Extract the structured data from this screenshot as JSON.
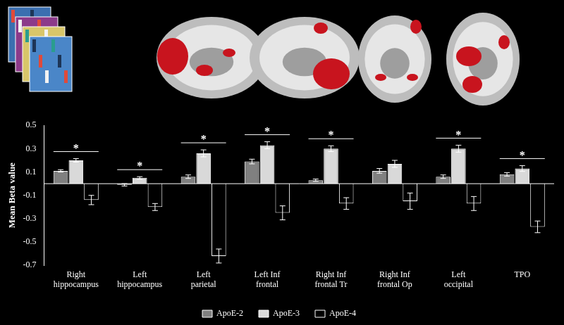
{
  "chart_data": {
    "type": "bar",
    "categories": [
      [
        "Right",
        "hippocampus"
      ],
      [
        "Left",
        "hippocampus"
      ],
      [
        "Left",
        "parietal"
      ],
      [
        "Left Inf",
        "frontal"
      ],
      [
        "Right Inf",
        "frontal Tr"
      ],
      [
        "Right Inf",
        "frontal Op"
      ],
      [
        "Left",
        "occipital"
      ],
      "TPO"
    ],
    "y_label": "Mean Beta value",
    "ylim": [
      -0.7,
      0.5
    ],
    "yticks": [
      -0.7,
      -0.5,
      -0.3,
      -0.1,
      0.1,
      0.3,
      0.5
    ],
    "grid": false,
    "legend": "bottom",
    "series": [
      {
        "name": "ApoE-2",
        "color": "#808080",
        "values": [
          0.11,
          -0.01,
          0.06,
          0.19,
          0.03,
          0.11,
          0.06,
          0.08
        ],
        "errors": [
          0.01,
          0.01,
          0.015,
          0.02,
          0.01,
          0.02,
          0.015,
          0.015
        ]
      },
      {
        "name": "ApoE-3",
        "color": "#d9d9d9",
        "values": [
          0.2,
          0.05,
          0.26,
          0.33,
          0.3,
          0.17,
          0.3,
          0.13
        ],
        "errors": [
          0.015,
          0.01,
          0.03,
          0.03,
          0.025,
          0.03,
          0.03,
          0.025
        ]
      },
      {
        "name": "ApoE-4",
        "color": "#000000",
        "values": [
          -0.14,
          -0.2,
          -0.62,
          -0.25,
          -0.17,
          -0.15,
          -0.17,
          -0.37
        ],
        "errors": [
          0.04,
          0.03,
          0.06,
          0.06,
          0.05,
          0.07,
          0.06,
          0.05
        ]
      }
    ],
    "annotations": [
      {
        "category": 0,
        "text": "*"
      },
      {
        "category": 1,
        "text": "*"
      },
      {
        "category": 2,
        "text": "*"
      },
      {
        "category": 3,
        "text": "*"
      },
      {
        "category": 4,
        "text": "*"
      },
      {
        "category": 6,
        "text": "*"
      },
      {
        "category": 7,
        "text": "*"
      }
    ]
  }
}
